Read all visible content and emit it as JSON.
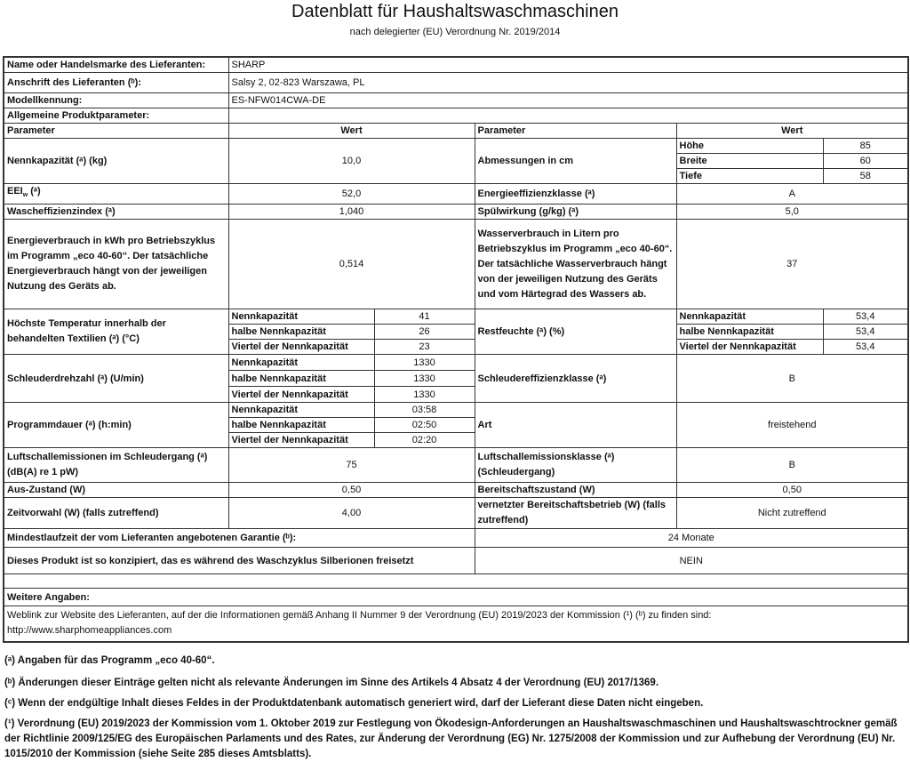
{
  "header": {
    "title": "Datenblatt für Haushaltswaschmaschinen",
    "subtitle": "nach delegierter (EU) Verordnung Nr. 2019/2014"
  },
  "supplier": {
    "name_label": "Name oder Handelsmarke des Lieferanten:",
    "name_value": "SHARP",
    "address_label": "Anschrift des Lieferanten (ᵇ):",
    "address_value": "Salsy 2, 02-823 Warszawa, PL",
    "model_label": "Modellkennung:",
    "model_value": "ES-NFW014CWA-DE",
    "general_label": "Allgemeine Produktparameter:"
  },
  "columns": {
    "parameter": "Parameter",
    "value": "Wert"
  },
  "sub_labels": {
    "full": "Nennkapazität",
    "half": "halbe Nennkapazität",
    "quarter": "Viertel der Nennkapazität"
  },
  "left": {
    "capacity": {
      "label": "Nennkapazität (ᵃ) (kg)",
      "value": "10,0"
    },
    "eei": {
      "label": "EEI",
      "label_sub": "w",
      "label_suffix": " (ᵃ)",
      "value": "52,0"
    },
    "wash_index": {
      "label": "Wascheffizienzindex (ᵃ)",
      "value": "1,040"
    },
    "energy": {
      "label": "Energieverbrauch in kWh pro Betriebszyklus im Programm „eco 40-60“. Der tatsächliche Energieverbrauch hängt von der jeweiligen Nutzung des Geräts ab.",
      "value": "0,514"
    },
    "temperature": {
      "label": "Höchste Temperatur innerhalb der behandelten Textilien (ᵃ) (°C)",
      "values": [
        "41",
        "26",
        "23"
      ]
    },
    "spin_speed": {
      "label": "Schleuderdrehzahl (ᵃ) (U/min)",
      "values": [
        "1330",
        "1330",
        "1330"
      ]
    },
    "duration": {
      "label": "Programmdauer (ᵃ) (h:min)",
      "values": [
        "03:58",
        "02:50",
        "02:20"
      ]
    },
    "noise": {
      "label": "Luftschallemissionen im Schleudergang (ᵃ) (dB(A) re 1 pW)",
      "value": "75"
    },
    "off_mode": {
      "label": "Aus-Zustand (W)",
      "value": "0,50"
    },
    "delay_start": {
      "label": "Zeitvorwahl (W) (falls zutreffend)",
      "value": "4,00"
    }
  },
  "right": {
    "dimensions": {
      "label": "Abmessungen in cm",
      "items": [
        {
          "label": "Höhe",
          "value": "85"
        },
        {
          "label": "Breite",
          "value": "60"
        },
        {
          "label": "Tiefe",
          "value": "58"
        }
      ]
    },
    "energy_class": {
      "label": "Energieeffizienzklasse (ᵃ)",
      "value": "A"
    },
    "rinse": {
      "label": "Spülwirkung (g/kg) (ᵃ)",
      "value": "5,0"
    },
    "water": {
      "label": "Wasserverbrauch in Litern pro Betriebszyklus im Programm „eco 40-60“. Der tatsächliche Wasserverbrauch hängt von der jeweiligen Nutzung des Geräts und vom Härtegrad des Wassers ab.",
      "value": "37"
    },
    "moisture": {
      "label": "Restfeuchte (ᵃ) (%)",
      "values": [
        "53,4",
        "53,4",
        "53,4"
      ]
    },
    "spin_class": {
      "label": "Schleudereffizienzklasse (ᵃ)",
      "value": "B"
    },
    "type": {
      "label": "Art",
      "value": "freistehend"
    },
    "noise_class": {
      "label": "Luftschallemissionsklasse (ᵃ) (Schleudergang)",
      "value": "B"
    },
    "standby": {
      "label": "Bereitschaftszustand (W)",
      "value": "0,50"
    },
    "network_standby": {
      "label": "vernetzter Bereitschaftsbetrieb (W) (falls zutreffend)",
      "value": "Nicht zutreffend"
    }
  },
  "warranty": {
    "label": "Mindestlaufzeit der vom Lieferanten angebotenen Garantie (ᵇ):",
    "value": "24 Monate"
  },
  "silver": {
    "label": "Dieses Produkt ist so konzipiert, das es während des Waschzyklus Silberionen freisetzt",
    "value": "NEIN"
  },
  "further": {
    "label": "Weitere Angaben:",
    "weblink_text": "Weblink zur Website des Lieferanten, auf der die Informationen gemäß Anhang II Nummer 9 der Verordnung (EU) 2019/2023 der Kommission (¹) (ᵇ) zu finden sind:",
    "url": "http://www.sharphomeappliances.com"
  },
  "footnotes": [
    "(ᵃ) Angaben für das Programm „eco 40-60“.",
    "(ᵇ) Änderungen dieser Einträge gelten nicht als relevante Änderungen im Sinne des Artikels 4 Absatz 4 der Verordnung (EU) 2017/1369.",
    "(ᶜ) Wenn der endgültige Inhalt dieses Feldes in der Produktdatenbank automatisch generiert wird, darf der Lieferant diese Daten nicht eingeben.",
    "(¹) Verordnung (EU) 2019/2023 der Kommission vom 1. Oktober 2019 zur Festlegung von Ökodesign-Anforderungen an Haushaltswaschmaschinen und Haushaltswaschtrockner gemäß der Richtlinie 2009/125/EG des Europäischen Parlaments und des Rates, zur Änderung der Verordnung (EG) Nr. 1275/2008 der Kommission und zur Aufhebung der Verordnung (EU) Nr. 1015/2010 der Kommission (siehe Seite 285 dieses Amtsblatts)."
  ]
}
